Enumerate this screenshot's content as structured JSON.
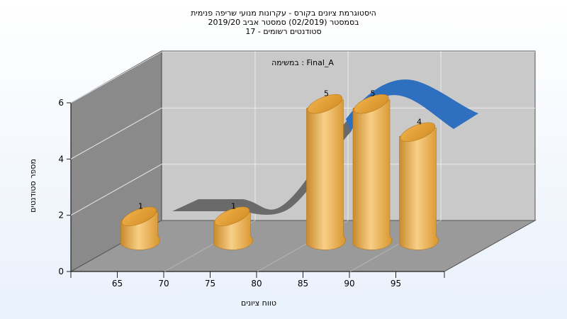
{
  "chart_data": {
    "type": "bar",
    "title_lines": [
      "היסטוגרמת ציונים בקורס - עקרונות מנועי שריפה פנימית",
      "בסמסטר  (02/2019)  סמסטר אביב 2019/20",
      "סטודנטים רשומים - 17"
    ],
    "annotation": "במשימה : Final_A",
    "xlabel": "טווח ציונים",
    "ylabel": "מספר סטודנטים",
    "x_ticks": [
      "65",
      "70",
      "75",
      "80",
      "85",
      "90",
      "95"
    ],
    "y_ticks": [
      "0",
      "2",
      "4",
      "6"
    ],
    "ylim": [
      0,
      6
    ],
    "categories": [
      65,
      75,
      85,
      90,
      95
    ],
    "values": [
      1,
      1,
      5,
      5,
      4
    ],
    "data_labels": [
      "1",
      "1",
      "5",
      "5",
      "4"
    ],
    "bar_color": "#e8a23c",
    "curve_colors": {
      "back": "#6a6a6a",
      "front": "#2f6fbf"
    },
    "wall_color": "#c9c9c9",
    "side_wall_color": "#8a8a8a",
    "floor_color": "#9a9a9a",
    "grid": true
  }
}
